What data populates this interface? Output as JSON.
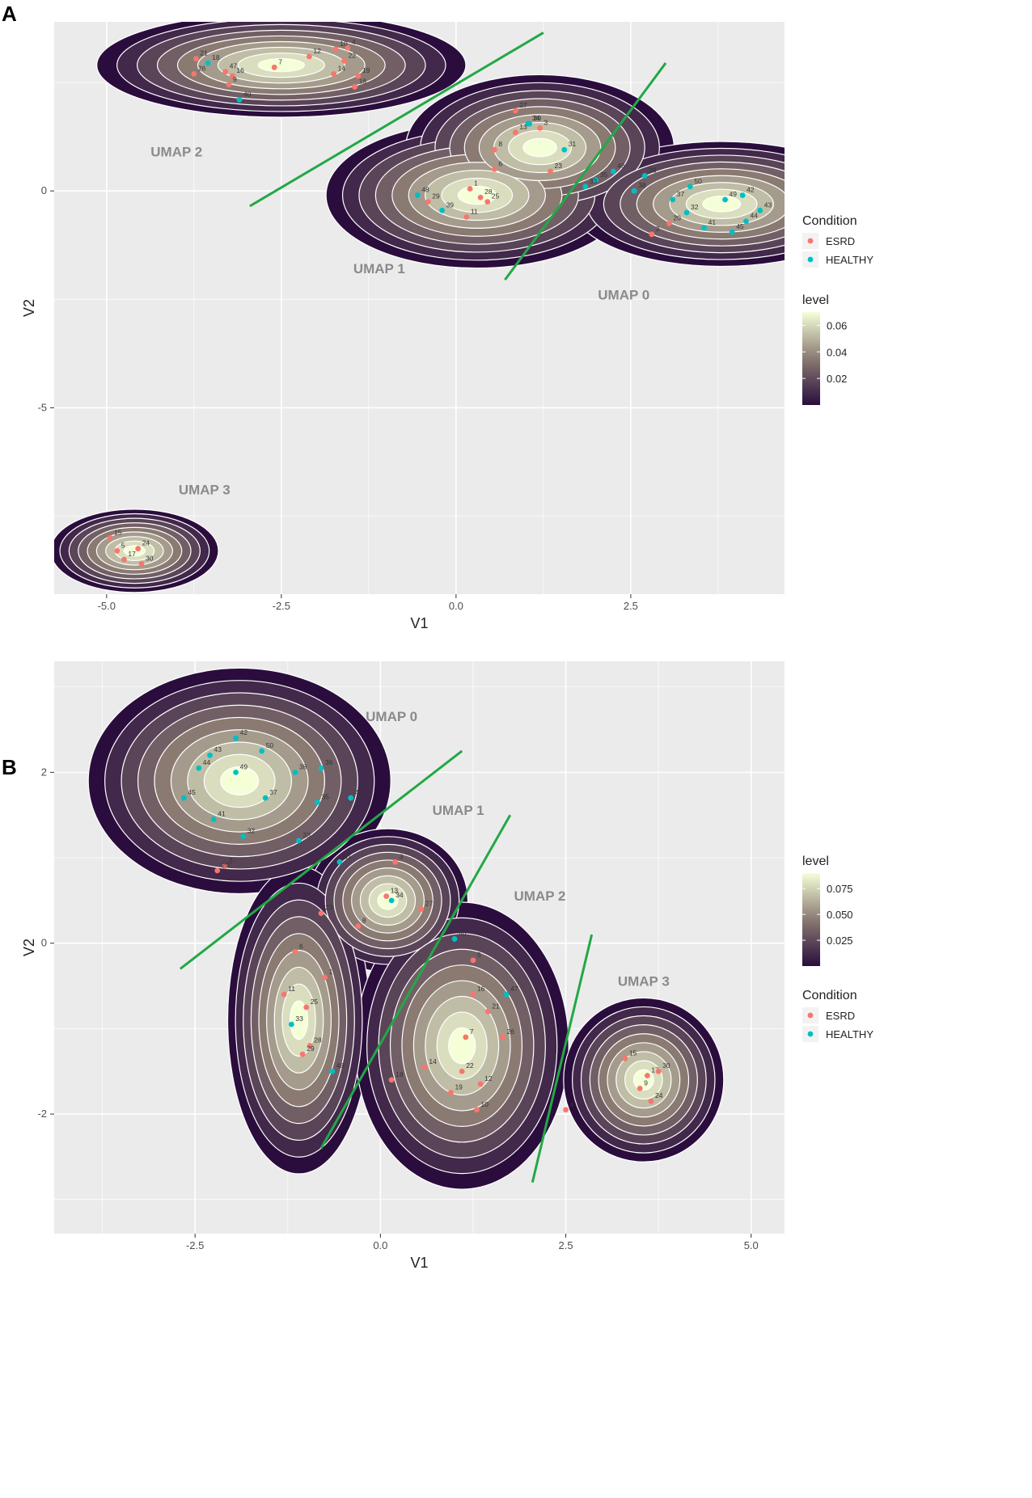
{
  "colors": {
    "panel_bg": "#ebebeb",
    "grid_major": "#ffffff",
    "esrd": "#f8766d",
    "healthy": "#00bfc4",
    "divider": "#22a846",
    "contour": "#ffffff",
    "level_low": "#2a0d3d",
    "level_mid": "#8a7a72",
    "level_high": "#f4ffd8"
  },
  "chart_data": [
    {
      "panel": "A",
      "type": "scatter",
      "subtype": "2d-density-contour",
      "xlabel": "V1",
      "ylabel": "V2",
      "xlim": [
        -5.75,
        4.7
      ],
      "ylim": [
        -9.3,
        3.9
      ],
      "x_ticks": [
        -5.0,
        -2.5,
        0.0,
        2.5
      ],
      "x_tick_labels": [
        "-5.0",
        "-2.5",
        "0.0",
        "2.5"
      ],
      "y_ticks": [
        -5,
        0
      ],
      "y_tick_labels": [
        "-5",
        "0"
      ],
      "grid": true,
      "legend_position": "right",
      "legend_condition": {
        "title": "Condition",
        "entries": [
          "ESRD",
          "HEALTHY"
        ]
      },
      "legend_level": {
        "title": "level",
        "breaks": [
          0.02,
          0.04,
          0.06
        ],
        "labels": [
          "0.02",
          "0.04",
          "0.06"
        ],
        "min": 0.0,
        "max": 0.07
      },
      "clusters": [
        {
          "name": "UMAP 2",
          "x": -4.0,
          "y": 0.8
        },
        {
          "name": "UMAP 1",
          "x": -1.1,
          "y": -1.9
        },
        {
          "name": "UMAP 0",
          "x": 2.4,
          "y": -2.5
        },
        {
          "name": "UMAP 3",
          "x": -3.6,
          "y": -7.0
        }
      ],
      "density_peaks": [
        {
          "x": -2.5,
          "y": 2.9,
          "sx": 1.1,
          "sy": 0.5
        },
        {
          "x": 0.3,
          "y": -0.1,
          "sx": 0.9,
          "sy": 0.7
        },
        {
          "x": 1.2,
          "y": 1.0,
          "sx": 0.8,
          "sy": 0.7
        },
        {
          "x": 3.8,
          "y": -0.3,
          "sx": 0.9,
          "sy": 0.6
        },
        {
          "x": -4.6,
          "y": -8.3,
          "sx": 0.5,
          "sy": 0.4
        }
      ],
      "divider_lines": [
        {
          "x1": -2.95,
          "y1": -0.35,
          "x2": 1.25,
          "y2": 3.65
        },
        {
          "x1": 0.7,
          "y1": -2.05,
          "x2": 3.0,
          "y2": 2.95
        }
      ],
      "points": [
        {
          "label": "10",
          "x": -1.72,
          "y": 3.27,
          "condition": "ESRD"
        },
        {
          "label": "4",
          "x": -1.55,
          "y": 3.3,
          "condition": "ESRD"
        },
        {
          "label": "21",
          "x": -3.72,
          "y": 3.05,
          "condition": "ESRD"
        },
        {
          "label": "18",
          "x": -3.55,
          "y": 2.95,
          "condition": "HEALTHY"
        },
        {
          "label": "12",
          "x": -2.1,
          "y": 3.1,
          "condition": "ESRD"
        },
        {
          "label": "22",
          "x": -1.6,
          "y": 3.0,
          "condition": "ESRD"
        },
        {
          "label": "47",
          "x": -3.3,
          "y": 2.75,
          "condition": "ESRD"
        },
        {
          "label": "16",
          "x": -3.2,
          "y": 2.65,
          "condition": "ESRD"
        },
        {
          "label": "7",
          "x": -2.6,
          "y": 2.85,
          "condition": "ESRD"
        },
        {
          "label": "14",
          "x": -1.75,
          "y": 2.7,
          "condition": "ESRD"
        },
        {
          "label": "19",
          "x": -1.4,
          "y": 2.65,
          "condition": "ESRD"
        },
        {
          "label": "26",
          "x": -3.75,
          "y": 2.7,
          "condition": "ESRD"
        },
        {
          "label": "9",
          "x": -3.25,
          "y": 2.45,
          "condition": "ESRD"
        },
        {
          "label": "18",
          "x": -1.45,
          "y": 2.4,
          "condition": "ESRD"
        },
        {
          "label": "40",
          "x": -3.1,
          "y": 2.1,
          "condition": "HEALTHY"
        },
        {
          "label": "27",
          "x": 0.85,
          "y": 1.85,
          "condition": "ESRD"
        },
        {
          "label": "39",
          "x": 1.05,
          "y": 1.55,
          "condition": "HEALTHY"
        },
        {
          "label": "34",
          "x": 1.03,
          "y": 1.55,
          "condition": "HEALTHY"
        },
        {
          "label": "3",
          "x": 1.2,
          "y": 1.45,
          "condition": "ESRD"
        },
        {
          "label": "13",
          "x": 0.85,
          "y": 1.35,
          "condition": "ESRD"
        },
        {
          "label": "31",
          "x": 1.55,
          "y": 0.95,
          "condition": "HEALTHY"
        },
        {
          "label": "8",
          "x": 0.55,
          "y": 0.95,
          "condition": "ESRD"
        },
        {
          "label": "6",
          "x": 0.55,
          "y": 0.5,
          "condition": "ESRD"
        },
        {
          "label": "23",
          "x": 1.35,
          "y": 0.45,
          "condition": "ESRD"
        },
        {
          "label": "46",
          "x": 2.25,
          "y": 0.45,
          "condition": "HEALTHY"
        },
        {
          "label": "35",
          "x": 2.0,
          "y": 0.25,
          "condition": "HEALTHY"
        },
        {
          "label": "33",
          "x": 1.85,
          "y": 0.1,
          "condition": "HEALTHY"
        },
        {
          "label": "36",
          "x": 2.7,
          "y": 0.35,
          "condition": "HEALTHY"
        },
        {
          "label": "38",
          "x": 2.55,
          "y": 0.0,
          "condition": "HEALTHY"
        },
        {
          "label": "50",
          "x": 3.35,
          "y": 0.1,
          "condition": "HEALTHY"
        },
        {
          "label": "1",
          "x": 0.2,
          "y": 0.05,
          "condition": "ESRD"
        },
        {
          "label": "48",
          "x": -0.55,
          "y": -0.1,
          "condition": "HEALTHY"
        },
        {
          "label": "28",
          "x": 0.35,
          "y": -0.15,
          "condition": "ESRD"
        },
        {
          "label": "29",
          "x": -0.4,
          "y": -0.25,
          "condition": "ESRD"
        },
        {
          "label": "25",
          "x": 0.45,
          "y": -0.25,
          "condition": "ESRD"
        },
        {
          "label": "39",
          "x": -0.2,
          "y": -0.45,
          "condition": "HEALTHY"
        },
        {
          "label": "11",
          "x": 0.15,
          "y": -0.6,
          "condition": "ESRD"
        },
        {
          "label": "37",
          "x": 3.1,
          "y": -0.2,
          "condition": "HEALTHY"
        },
        {
          "label": "32",
          "x": 3.3,
          "y": -0.5,
          "condition": "HEALTHY"
        },
        {
          "label": "49",
          "x": 3.85,
          "y": -0.2,
          "condition": "HEALTHY"
        },
        {
          "label": "42",
          "x": 4.1,
          "y": -0.1,
          "condition": "HEALTHY"
        },
        {
          "label": "43",
          "x": 4.35,
          "y": -0.45,
          "condition": "HEALTHY"
        },
        {
          "label": "44",
          "x": 4.15,
          "y": -0.7,
          "condition": "HEALTHY"
        },
        {
          "label": "20",
          "x": 3.05,
          "y": -0.75,
          "condition": "ESRD"
        },
        {
          "label": "41",
          "x": 3.55,
          "y": -0.85,
          "condition": "HEALTHY"
        },
        {
          "label": "45",
          "x": 3.95,
          "y": -0.95,
          "condition": "HEALTHY"
        },
        {
          "label": "2",
          "x": 2.8,
          "y": -1.0,
          "condition": "ESRD"
        },
        {
          "label": "15",
          "x": -4.95,
          "y": -8.0,
          "condition": "ESRD"
        },
        {
          "label": "5",
          "x": -4.85,
          "y": -8.3,
          "condition": "ESRD"
        },
        {
          "label": "24",
          "x": -4.55,
          "y": -8.25,
          "condition": "ESRD"
        },
        {
          "label": "17",
          "x": -4.75,
          "y": -8.5,
          "condition": "ESRD"
        },
        {
          "label": "30",
          "x": -4.5,
          "y": -8.6,
          "condition": "ESRD"
        }
      ]
    },
    {
      "panel": "B",
      "type": "scatter",
      "subtype": "2d-density-contour",
      "xlabel": "V1",
      "ylabel": "V2",
      "xlim": [
        -4.4,
        5.45
      ],
      "ylim": [
        -3.4,
        3.3
      ],
      "x_ticks": [
        -2.5,
        0.0,
        2.5,
        5.0
      ],
      "x_tick_labels": [
        "-2.5",
        "0.0",
        "2.5",
        "5.0"
      ],
      "y_ticks": [
        -2,
        0,
        2
      ],
      "y_tick_labels": [
        "-2",
        "0",
        "2"
      ],
      "grid": true,
      "legend_position": "right",
      "legend_level": {
        "title": "level",
        "breaks": [
          0.025,
          0.05,
          0.075
        ],
        "labels": [
          "0.025",
          "0.050",
          "0.075"
        ],
        "min": 0.0,
        "max": 0.09
      },
      "legend_condition": {
        "title": "Condition",
        "entries": [
          "ESRD",
          "HEALTHY"
        ]
      },
      "clusters": [
        {
          "name": "UMAP 0",
          "x": 0.15,
          "y": 2.6
        },
        {
          "name": "UMAP 1",
          "x": 1.05,
          "y": 1.5
        },
        {
          "name": "UMAP 2",
          "x": 2.15,
          "y": 0.5
        },
        {
          "name": "UMAP 3",
          "x": 3.55,
          "y": -0.5
        }
      ],
      "density_peaks": [
        {
          "x": -1.9,
          "y": 1.9,
          "sx": 0.85,
          "sy": 0.55
        },
        {
          "x": 0.1,
          "y": 0.5,
          "sx": 0.45,
          "sy": 0.35
        },
        {
          "x": -1.1,
          "y": -0.9,
          "sx": 0.4,
          "sy": 0.75
        },
        {
          "x": 1.1,
          "y": -1.2,
          "sx": 0.6,
          "sy": 0.7
        },
        {
          "x": 3.55,
          "y": -1.6,
          "sx": 0.45,
          "sy": 0.4
        }
      ],
      "divider_lines": [
        {
          "x1": -2.7,
          "y1": -0.3,
          "x2": 1.1,
          "y2": 2.25
        },
        {
          "x1": -0.8,
          "y1": -2.4,
          "x2": 1.75,
          "y2": 1.5
        },
        {
          "x1": 2.05,
          "y1": -2.8,
          "x2": 2.85,
          "y2": 0.1
        }
      ],
      "points": [
        {
          "label": "42",
          "x": -1.95,
          "y": 2.4,
          "condition": "HEALTHY"
        },
        {
          "label": "50",
          "x": -1.6,
          "y": 2.25,
          "condition": "HEALTHY"
        },
        {
          "label": "43",
          "x": -2.3,
          "y": 2.2,
          "condition": "HEALTHY"
        },
        {
          "label": "44",
          "x": -2.45,
          "y": 2.05,
          "condition": "HEALTHY"
        },
        {
          "label": "49",
          "x": -1.95,
          "y": 2.0,
          "condition": "HEALTHY"
        },
        {
          "label": "38",
          "x": -1.15,
          "y": 2.0,
          "condition": "HEALTHY"
        },
        {
          "label": "36",
          "x": -0.8,
          "y": 2.05,
          "condition": "HEALTHY"
        },
        {
          "label": "45",
          "x": -2.65,
          "y": 1.7,
          "condition": "HEALTHY"
        },
        {
          "label": "37",
          "x": -1.55,
          "y": 1.7,
          "condition": "HEALTHY"
        },
        {
          "label": "35",
          "x": -0.85,
          "y": 1.65,
          "condition": "HEALTHY"
        },
        {
          "label": "46",
          "x": -0.4,
          "y": 1.7,
          "condition": "HEALTHY"
        },
        {
          "label": "41",
          "x": -2.25,
          "y": 1.45,
          "condition": "HEALTHY"
        },
        {
          "label": "32",
          "x": -1.85,
          "y": 1.25,
          "condition": "HEALTHY"
        },
        {
          "label": "33",
          "x": -1.1,
          "y": 1.2,
          "condition": "HEALTHY"
        },
        {
          "label": "2",
          "x": -2.1,
          "y": 0.9,
          "condition": "ESRD"
        },
        {
          "label": "20",
          "x": -2.2,
          "y": 0.85,
          "condition": "ESRD"
        },
        {
          "label": "31",
          "x": -0.55,
          "y": 0.95,
          "condition": "HEALTHY"
        },
        {
          "label": "3",
          "x": 0.2,
          "y": 0.95,
          "condition": "ESRD"
        },
        {
          "label": "13",
          "x": 0.08,
          "y": 0.55,
          "condition": "ESRD"
        },
        {
          "label": "34",
          "x": 0.15,
          "y": 0.5,
          "condition": "HEALTHY"
        },
        {
          "label": "27",
          "x": 0.55,
          "y": 0.4,
          "condition": "ESRD"
        },
        {
          "label": "23",
          "x": -0.8,
          "y": 0.35,
          "condition": "ESRD"
        },
        {
          "label": "8",
          "x": -0.3,
          "y": 0.2,
          "condition": "ESRD"
        },
        {
          "label": "40",
          "x": 1.0,
          "y": 0.05,
          "condition": "HEALTHY"
        },
        {
          "label": "6",
          "x": -1.15,
          "y": -0.1,
          "condition": "ESRD"
        },
        {
          "label": "5",
          "x": 1.25,
          "y": -0.2,
          "condition": "ESRD"
        },
        {
          "label": "1",
          "x": -0.75,
          "y": -0.4,
          "condition": "ESRD"
        },
        {
          "label": "11",
          "x": -1.3,
          "y": -0.6,
          "condition": "ESRD"
        },
        {
          "label": "16",
          "x": 1.25,
          "y": -0.6,
          "condition": "ESRD"
        },
        {
          "label": "47",
          "x": 1.7,
          "y": -0.6,
          "condition": "HEALTHY"
        },
        {
          "label": "25",
          "x": -1.0,
          "y": -0.75,
          "condition": "ESRD"
        },
        {
          "label": "21",
          "x": 1.45,
          "y": -0.8,
          "condition": "ESRD"
        },
        {
          "label": "33",
          "x": -1.2,
          "y": -0.95,
          "condition": "HEALTHY"
        },
        {
          "label": "7",
          "x": 1.15,
          "y": -1.1,
          "condition": "ESRD"
        },
        {
          "label": "26",
          "x": 1.65,
          "y": -1.1,
          "condition": "ESRD"
        },
        {
          "label": "28",
          "x": -0.95,
          "y": -1.2,
          "condition": "ESRD"
        },
        {
          "label": "29",
          "x": -1.05,
          "y": -1.3,
          "condition": "ESRD"
        },
        {
          "label": "14",
          "x": 0.6,
          "y": -1.45,
          "condition": "ESRD"
        },
        {
          "label": "48",
          "x": -0.65,
          "y": -1.5,
          "condition": "HEALTHY"
        },
        {
          "label": "22",
          "x": 1.1,
          "y": -1.5,
          "condition": "ESRD"
        },
        {
          "label": "12",
          "x": 1.35,
          "y": -1.65,
          "condition": "ESRD"
        },
        {
          "label": "18",
          "x": 0.15,
          "y": -1.6,
          "condition": "ESRD"
        },
        {
          "label": "19",
          "x": 0.95,
          "y": -1.75,
          "condition": "ESRD"
        },
        {
          "label": "10",
          "x": 1.3,
          "y": -1.95,
          "condition": "ESRD"
        },
        {
          "label": "4",
          "x": 2.5,
          "y": -1.95,
          "condition": "ESRD"
        },
        {
          "label": "15",
          "x": 3.3,
          "y": -1.35,
          "condition": "ESRD"
        },
        {
          "label": "17",
          "x": 3.6,
          "y": -1.55,
          "condition": "ESRD"
        },
        {
          "label": "30",
          "x": 3.75,
          "y": -1.5,
          "condition": "ESRD"
        },
        {
          "label": "9",
          "x": 3.5,
          "y": -1.7,
          "condition": "ESRD"
        },
        {
          "label": "24",
          "x": 3.65,
          "y": -1.85,
          "condition": "ESRD"
        }
      ]
    }
  ]
}
